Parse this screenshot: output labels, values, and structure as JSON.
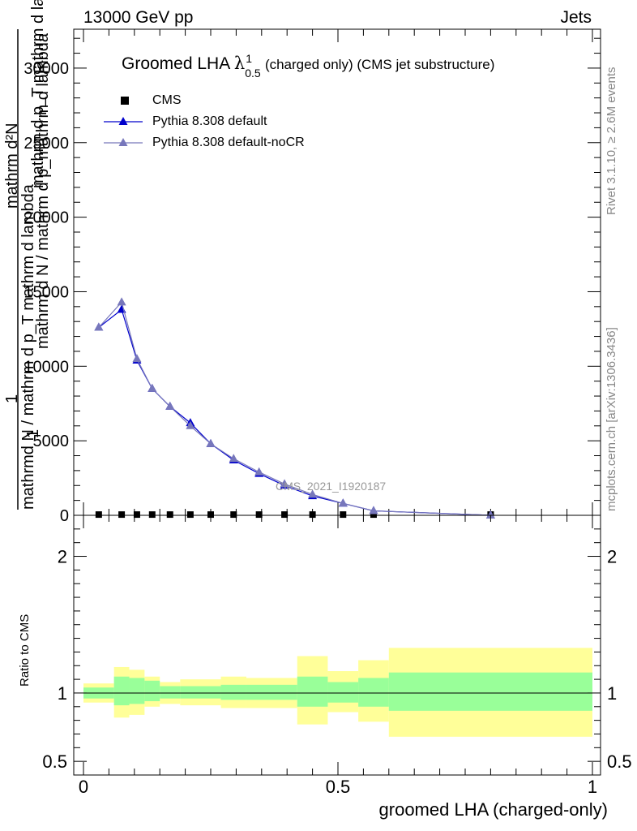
{
  "header": {
    "left": "13000 GeV pp",
    "right": "Jets"
  },
  "side_text": {
    "rivet": "Rivet 3.1.10, ≥ 2.6M events",
    "mcplots": "mcplots.cern.ch [arXiv:1306.3436]"
  },
  "title": {
    "prefix": "Groomed LHA ",
    "symbol": "λ",
    "sup": "1",
    "sub": "0.5",
    "suffix": " (charged only) (CMS jet substructure)"
  },
  "watermark": "CMS_2021_I1920187",
  "legend": [
    {
      "label": "CMS",
      "marker": "square",
      "color": "#000000"
    },
    {
      "label": "Pythia 8.308 default",
      "marker": "triangle",
      "color": "#0000cc"
    },
    {
      "label": "Pythia 8.308 default-noCR",
      "marker": "triangle",
      "color": "#7777bb"
    }
  ],
  "axes": {
    "main_ylabel_lines": [
      "mathrm d²N",
      "1",
      "mathrm d N / mathrm d p_mathrm d lambda",
      "mathrm d p_T mathrm d lambda"
    ],
    "main_ylabel_overlap": [
      "mathrmd N / mathrm d p_T mathrm d lambda",
      "1"
    ],
    "ratio_ylabel": "Ratio to CMS",
    "xlabel": "groomed LHA (charged-only)"
  },
  "chart_data": [
    {
      "type": "line",
      "panel": "main",
      "xlim": [
        0,
        1
      ],
      "ylim": [
        0,
        32500
      ],
      "x_ticks": [
        0,
        0.5,
        1
      ],
      "y_ticks": [
        0,
        5000,
        10000,
        15000,
        20000,
        25000,
        30000
      ],
      "y_tick_labels": [
        "0",
        "5000",
        "10000",
        "15000",
        "20000",
        "25000",
        "30000"
      ],
      "series": [
        {
          "name": "CMS",
          "x": [
            0.03,
            0.075,
            0.105,
            0.135,
            0.17,
            0.21,
            0.25,
            0.295,
            0.345,
            0.395,
            0.45,
            0.51,
            0.57,
            0.8
          ],
          "y": [
            50,
            50,
            50,
            50,
            50,
            50,
            50,
            50,
            50,
            50,
            50,
            50,
            50,
            50
          ]
        },
        {
          "name": "Pythia 8.308 default",
          "x": [
            0.03,
            0.075,
            0.105,
            0.135,
            0.17,
            0.21,
            0.25,
            0.295,
            0.345,
            0.395,
            0.45,
            0.51,
            0.57,
            0.8
          ],
          "y": [
            12600,
            13800,
            10400,
            8500,
            7300,
            6200,
            4800,
            3700,
            2800,
            2000,
            1300,
            800,
            300,
            0
          ]
        },
        {
          "name": "Pythia 8.308 default-noCR",
          "x": [
            0.03,
            0.075,
            0.105,
            0.135,
            0.17,
            0.21,
            0.25,
            0.295,
            0.345,
            0.395,
            0.45,
            0.51,
            0.57,
            0.8
          ],
          "y": [
            12600,
            14300,
            10500,
            8500,
            7300,
            6000,
            4800,
            3800,
            2900,
            2100,
            1400,
            800,
            300,
            0
          ]
        }
      ]
    },
    {
      "type": "area",
      "panel": "ratio",
      "xlim": [
        0,
        1
      ],
      "ylim": [
        0.4,
        2.3
      ],
      "y_ticks": [
        0.5,
        1,
        2
      ],
      "y_tick_labels": [
        "0.5",
        "1",
        "2"
      ],
      "x_ticks": [
        0,
        0.5,
        1
      ],
      "x_tick_labels": [
        "0",
        "0.5",
        "1"
      ],
      "reference": 1,
      "bins": [
        {
          "lo": 0.0,
          "hi": 0.06,
          "inner": [
            0.96,
            1.04
          ],
          "outer": [
            0.93,
            1.07
          ]
        },
        {
          "lo": 0.06,
          "hi": 0.09,
          "inner": [
            0.91,
            1.12
          ],
          "outer": [
            0.82,
            1.19
          ]
        },
        {
          "lo": 0.09,
          "hi": 0.12,
          "inner": [
            0.92,
            1.11
          ],
          "outer": [
            0.84,
            1.17
          ]
        },
        {
          "lo": 0.12,
          "hi": 0.15,
          "inner": [
            0.94,
            1.09
          ],
          "outer": [
            0.9,
            1.12
          ]
        },
        {
          "lo": 0.15,
          "hi": 0.19,
          "inner": [
            0.96,
            1.05
          ],
          "outer": [
            0.92,
            1.08
          ]
        },
        {
          "lo": 0.19,
          "hi": 0.27,
          "inner": [
            0.96,
            1.05
          ],
          "outer": [
            0.91,
            1.1
          ]
        },
        {
          "lo": 0.27,
          "hi": 0.32,
          "inner": [
            0.95,
            1.06
          ],
          "outer": [
            0.89,
            1.12
          ]
        },
        {
          "lo": 0.32,
          "hi": 0.42,
          "inner": [
            0.95,
            1.06
          ],
          "outer": [
            0.89,
            1.11
          ]
        },
        {
          "lo": 0.42,
          "hi": 0.48,
          "inner": [
            0.9,
            1.12
          ],
          "outer": [
            0.77,
            1.27
          ]
        },
        {
          "lo": 0.48,
          "hi": 0.54,
          "inner": [
            0.93,
            1.08
          ],
          "outer": [
            0.86,
            1.16
          ]
        },
        {
          "lo": 0.54,
          "hi": 0.6,
          "inner": [
            0.9,
            1.11
          ],
          "outer": [
            0.79,
            1.24
          ]
        },
        {
          "lo": 0.6,
          "hi": 1.0,
          "inner": [
            0.87,
            1.15
          ],
          "outer": [
            0.68,
            1.33
          ]
        }
      ],
      "colors": {
        "inner": "#99ff99",
        "outer": "#ffff99",
        "line": "#000000"
      }
    }
  ]
}
